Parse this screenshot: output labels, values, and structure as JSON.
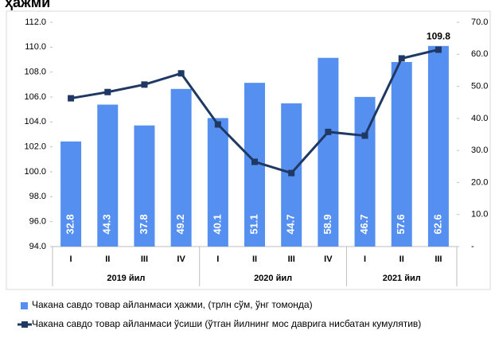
{
  "chart_data": {
    "type": "bar-line",
    "title": "ҳажми",
    "categories": [
      "I",
      "II",
      "III",
      "IV",
      "I",
      "II",
      "III",
      "IV",
      "I",
      "II",
      "III"
    ],
    "groups": [
      {
        "label": "2019 йил",
        "span": 4
      },
      {
        "label": "2020 йил",
        "span": 4
      },
      {
        "label": "2021 йил",
        "span": 3
      }
    ],
    "series": [
      {
        "name": "Чакана савдо товар айланмаси ҳажми, (трлн сўм, ўнг томонда)",
        "type": "bar",
        "axis": "y2",
        "color": "#5590f0",
        "values": [
          32.8,
          44.3,
          37.8,
          49.2,
          40.1,
          51.1,
          44.7,
          58.9,
          46.7,
          57.6,
          62.6
        ]
      },
      {
        "name": "Чакана савдо товар айланмаси ўсиши (ўтган йилнинг мос даврига нисбатан кумулятив)",
        "type": "line",
        "axis": "y",
        "color": "#1f3864",
        "values": [
          105.9,
          106.4,
          107.0,
          107.9,
          103.8,
          100.8,
          99.9,
          103.2,
          102.9,
          109.1,
          109.8
        ]
      }
    ],
    "ylim": [
      94,
      112
    ],
    "yticks": [
      {
        "value": 94,
        "label": "94.0"
      },
      {
        "value": 96,
        "label": "96.0"
      },
      {
        "value": 98,
        "label": "98.0"
      },
      {
        "value": 100,
        "label": "100.0"
      },
      {
        "value": 102,
        "label": "102.0"
      },
      {
        "value": 104,
        "label": "104.0"
      },
      {
        "value": 106,
        "label": "106.0"
      },
      {
        "value": 108,
        "label": "108.0"
      },
      {
        "value": 110,
        "label": "110.0"
      },
      {
        "value": 112,
        "label": "112.0"
      }
    ],
    "y2lim": [
      0,
      70
    ],
    "y2ticks": [
      {
        "value": 0,
        "label": "-"
      },
      {
        "value": 10,
        "label": "10.0"
      },
      {
        "value": 20,
        "label": "20.0"
      },
      {
        "value": 30,
        "label": "30.0"
      },
      {
        "value": 40,
        "label": "40.0"
      },
      {
        "value": 50,
        "label": "50.0"
      },
      {
        "value": 60,
        "label": "60.0"
      },
      {
        "value": 70,
        "label": "70.0"
      }
    ],
    "grid": false,
    "legend": "bottom"
  }
}
